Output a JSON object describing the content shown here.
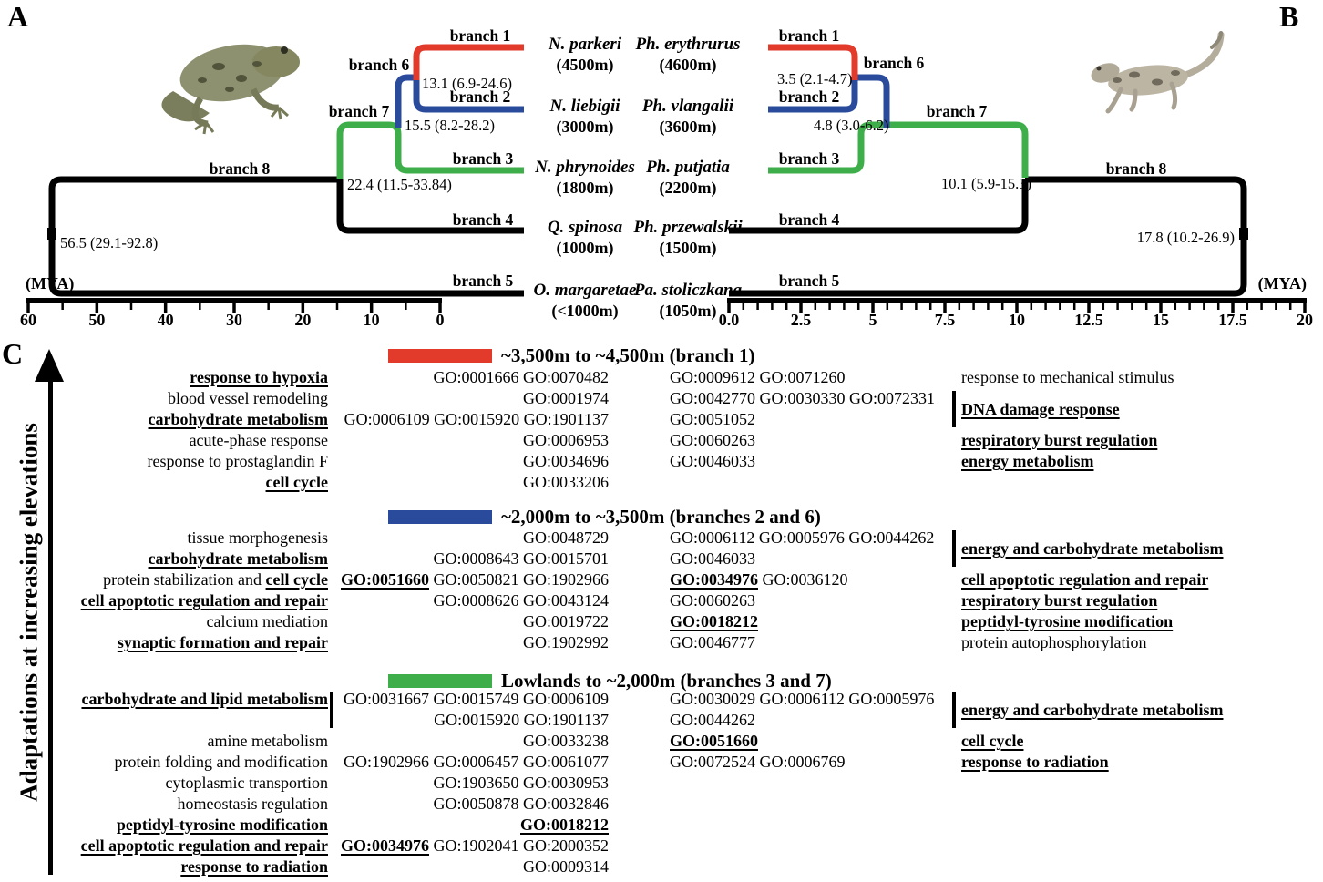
{
  "figure": {
    "panel_labels": {
      "a": "A",
      "b": "B",
      "c": "C"
    }
  },
  "colors": {
    "high": "#e23a2b",
    "mid": "#2a4b9c",
    "low": "#3dae49",
    "line": "#000000"
  },
  "tree_a": {
    "mya_label": "(MYA)",
    "axis_ticks": [
      "60",
      "50",
      "40",
      "30",
      "20",
      "10",
      "0"
    ],
    "branch_labels": [
      "branch 1",
      "branch 2",
      "branch 3",
      "branch 4",
      "branch 5",
      "branch 6",
      "branch 7",
      "branch 8"
    ],
    "node_ages": [
      "13.1 (6.9-24.6)",
      "15.5 (8.2-28.2)",
      "22.4 (11.5-33.84)",
      "56.5 (29.1-92.8)"
    ],
    "species": [
      {
        "name": "N. parkeri",
        "elevation": "(4500m)"
      },
      {
        "name": "N. liebigii",
        "elevation": "(3000m)"
      },
      {
        "name": "N. phrynoides",
        "elevation": "(1800m)"
      },
      {
        "name": "Q. spinosa",
        "elevation": "(1000m)"
      },
      {
        "name": "O. margaretae",
        "elevation": "(<1000m)"
      }
    ]
  },
  "tree_b": {
    "mya_label": "(MYA)",
    "axis_ticks": [
      "0.0",
      "2.5",
      "5",
      "7.5",
      "10",
      "12.5",
      "15",
      "17.5",
      "20"
    ],
    "branch_labels": [
      "branch 1",
      "branch 2",
      "branch 3",
      "branch 4",
      "branch 5",
      "branch 6",
      "branch 7",
      "branch 8"
    ],
    "node_ages": [
      "3.5 (2.1-4.7)",
      "4.8 (3.0-6.2)",
      "10.1 (5.9-15.3)",
      "17.8 (10.2-26.9)"
    ],
    "species": [
      {
        "name": "Ph. erythrurus",
        "elevation": "(4600m)"
      },
      {
        "name": "Ph. vlangalii",
        "elevation": "(3600m)"
      },
      {
        "name": "Ph. putjatia",
        "elevation": "(2200m)"
      },
      {
        "name": "Ph. przewalskii",
        "elevation": "(1500m)"
      },
      {
        "name": "Pa. stoliczkana",
        "elevation": "(1050m)"
      }
    ]
  },
  "panel_c": {
    "axis_label": "Adaptations at increasing elevations",
    "blocks": [
      {
        "color": "#e23a2b",
        "title": "~3,500m to ~4,500m (branch 1)",
        "left_bar": null,
        "rows": [
          {
            "label": [
              [
                "bu",
                "response to hypoxia"
              ]
            ],
            "gl": [
              [
                "p",
                "GO:0001666 GO:0070482"
              ]
            ],
            "gm": [
              [
                "p",
                "GO:0009612 GO:0071260"
              ]
            ]
          },
          {
            "label": [
              [
                "p",
                "blood vessel remodeling"
              ]
            ],
            "gl": [
              [
                "p",
                "GO:0001974"
              ]
            ],
            "gm": [
              [
                "p",
                "GO:0042770 GO:0030330 GO:0072331"
              ]
            ]
          },
          {
            "label": [
              [
                "bu",
                "carbohydrate metabolism"
              ]
            ],
            "gl": [
              [
                "p",
                "GO:0006109 GO:0015920 GO:1901137"
              ]
            ],
            "gm": [
              [
                "p",
                "GO:0051052"
              ]
            ]
          },
          {
            "label": [
              [
                "p",
                "acute-phase response"
              ]
            ],
            "gl": [
              [
                "p",
                "GO:0006953"
              ]
            ],
            "gm": [
              [
                "p",
                "GO:0060263"
              ]
            ]
          },
          {
            "label": [
              [
                "p",
                "response to prostaglandin F"
              ]
            ],
            "gl": [
              [
                "p",
                "GO:0034696"
              ]
            ],
            "gm": [
              [
                "p",
                "GO:0046033"
              ]
            ]
          },
          {
            "label": [
              [
                "bu",
                "cell cycle"
              ]
            ],
            "gl": [
              [
                "p",
                "GO:0033206"
              ]
            ],
            "gm": []
          }
        ],
        "right": [
          {
            "row": 1,
            "segs": [
              [
                "p",
                "response to mechanical stimulus"
              ]
            ]
          },
          {
            "row": 2.5,
            "bar": [
              2,
              3
            ],
            "segs": [
              [
                "bu",
                "DNA damage response"
              ]
            ]
          },
          {
            "row": 4,
            "segs": [
              [
                "bu",
                "respiratory burst regulation"
              ]
            ]
          },
          {
            "row": 5,
            "segs": [
              [
                "bu",
                "energy metabolism"
              ]
            ]
          }
        ]
      },
      {
        "color": "#2a4b9c",
        "title": "~2,000m to ~3,500m (branches 2 and 6)",
        "left_bar": null,
        "rows": [
          {
            "label": [
              [
                "p",
                "tissue morphogenesis"
              ]
            ],
            "gl": [
              [
                "p",
                "GO:0048729"
              ]
            ],
            "gm": [
              [
                "p",
                "GO:0006112 GO:0005976 GO:0044262"
              ]
            ]
          },
          {
            "label": [
              [
                "bu",
                "carbohydrate metabolism"
              ]
            ],
            "gl": [
              [
                "p",
                "GO:0008643 GO:0015701"
              ]
            ],
            "gm": [
              [
                "p",
                "GO:0046033"
              ]
            ]
          },
          {
            "label": [
              [
                "p",
                "protein stabilization and "
              ],
              [
                "bu",
                "cell cycle"
              ]
            ],
            "gl": [
              [
                "bu",
                "GO:0051660"
              ],
              [
                "p",
                " GO:0050821 GO:1902966"
              ]
            ],
            "gm": [
              [
                "bu",
                "GO:0034976"
              ],
              [
                "p",
                " GO:0036120"
              ]
            ]
          },
          {
            "label": [
              [
                "bu",
                "cell apoptotic regulation and repair"
              ]
            ],
            "gl": [
              [
                "p",
                "GO:0008626 GO:0043124"
              ]
            ],
            "gm": [
              [
                "p",
                "GO:0060263"
              ]
            ]
          },
          {
            "label": [
              [
                "p",
                "calcium mediation"
              ]
            ],
            "gl": [
              [
                "p",
                "GO:0019722"
              ]
            ],
            "gm": [
              [
                "bu",
                "GO:0018212"
              ]
            ]
          },
          {
            "label": [
              [
                "bu",
                "synaptic formation and repair"
              ]
            ],
            "gl": [
              [
                "p",
                "GO:1902992"
              ]
            ],
            "gm": [
              [
                "p",
                "GO:0046777"
              ]
            ]
          }
        ],
        "right": [
          {
            "row": 1.5,
            "bar": [
              1,
              2
            ],
            "segs": [
              [
                "bu",
                "energy and carbohydrate metabolism"
              ]
            ]
          },
          {
            "row": 3,
            "segs": [
              [
                "bu",
                "cell apoptotic regulation and repair"
              ]
            ]
          },
          {
            "row": 4,
            "segs": [
              [
                "bu",
                "respiratory burst regulation"
              ]
            ]
          },
          {
            "row": 5,
            "segs": [
              [
                "bu",
                "peptidyl-tyrosine modification"
              ]
            ]
          },
          {
            "row": 6,
            "segs": [
              [
                "p",
                "protein autophosphorylation"
              ]
            ]
          }
        ]
      },
      {
        "color": "#3dae49",
        "title": "Lowlands to ~2,000m (branches 3 and 7)",
        "left_bar": [
          1,
          2
        ],
        "rows": [
          {
            "label": [
              [
                "bu",
                "carbohydrate and lipid metabolism"
              ]
            ],
            "gl": [
              [
                "p",
                "GO:0031667 GO:0015749 GO:0006109"
              ]
            ],
            "gm": [
              [
                "p",
                "GO:0030029 GO:0006112 GO:0005976"
              ]
            ]
          },
          {
            "label": [],
            "gl": [
              [
                "p",
                "GO:0015920 GO:1901137"
              ]
            ],
            "gm": [
              [
                "p",
                "GO:0044262"
              ]
            ]
          },
          {
            "label": [
              [
                "p",
                "amine metabolism"
              ]
            ],
            "gl": [
              [
                "p",
                "GO:0033238"
              ]
            ],
            "gm": [
              [
                "bu",
                "GO:0051660"
              ]
            ]
          },
          {
            "label": [
              [
                "p",
                "protein folding and modification"
              ]
            ],
            "gl": [
              [
                "p",
                "GO:1902966 GO:0006457 GO:0061077"
              ]
            ],
            "gm": [
              [
                "p",
                "GO:0072524 GO:0006769"
              ]
            ]
          },
          {
            "label": [
              [
                "p",
                "cytoplasmic transportion"
              ]
            ],
            "gl": [
              [
                "p",
                "GO:1903650 GO:0030953"
              ]
            ],
            "gm": []
          },
          {
            "label": [
              [
                "p",
                "homeostasis regulation"
              ]
            ],
            "gl": [
              [
                "p",
                "GO:0050878 GO:0032846"
              ]
            ],
            "gm": []
          },
          {
            "label": [
              [
                "bu",
                "peptidyl-tyrosine modification"
              ]
            ],
            "gl": [
              [
                "bu",
                "GO:0018212"
              ]
            ],
            "gm": []
          },
          {
            "label": [
              [
                "bu",
                "cell apoptotic regulation and repair"
              ]
            ],
            "gl": [
              [
                "bu",
                "GO:0034976"
              ],
              [
                "p",
                " GO:1902041 GO:2000352"
              ]
            ],
            "gm": []
          },
          {
            "label": [
              [
                "bu",
                "response to radiation"
              ]
            ],
            "gl": [
              [
                "p",
                "GO:0009314"
              ]
            ],
            "gm": []
          }
        ],
        "right": [
          {
            "row": 1.5,
            "bar": [
              1,
              2
            ],
            "segs": [
              [
                "bu",
                "energy and carbohydrate metabolism"
              ]
            ]
          },
          {
            "row": 3,
            "segs": [
              [
                "bu",
                "cell cycle"
              ]
            ]
          },
          {
            "row": 4,
            "segs": [
              [
                "bu",
                "response to radiation"
              ]
            ]
          }
        ]
      }
    ]
  }
}
